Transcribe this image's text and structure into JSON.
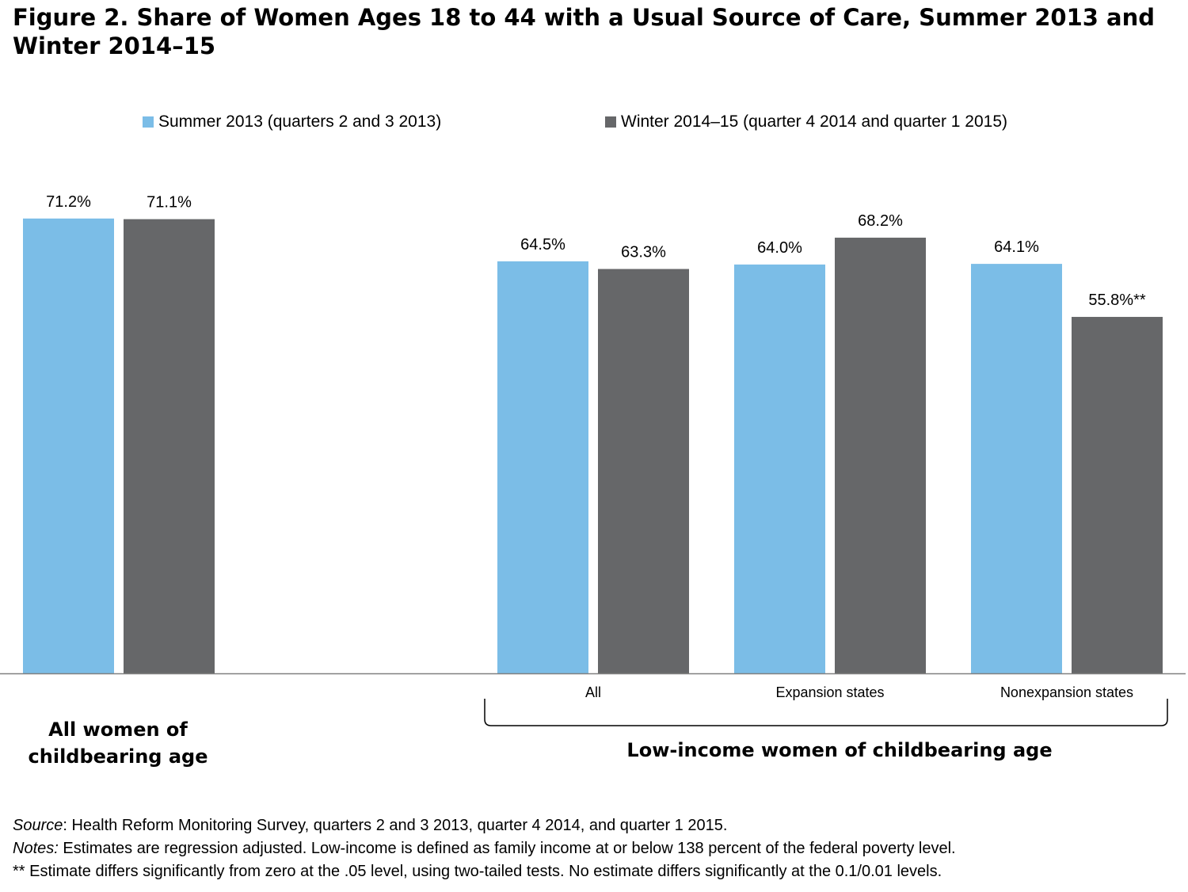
{
  "title": "Figure 2. Share of Women Ages 18 to 44 with a Usual Source of Care, Summer 2013 and Winter 2014–15",
  "colors": {
    "summer": "#7bbde7",
    "winter": "#666769",
    "axis": "#808080"
  },
  "chart_data": {
    "type": "bar",
    "title": "Figure 2. Share of Women Ages 18 to 44 with a Usual Source of Care, Summer 2013 and Winter 2014–15",
    "ylim": [
      0,
      80
    ],
    "grid": false,
    "legend_position": "top",
    "categories": [
      "",
      "All",
      "Expansion states",
      "Nonexpansion states"
    ],
    "series": [
      {
        "name": "Summer 2013 (quarters 2 and 3 2013)",
        "values": [
          71.2,
          64.5,
          64.0,
          64.1
        ],
        "labels": [
          "71.2%",
          "64.5%",
          "64.0%",
          "64.1%"
        ]
      },
      {
        "name": "Winter 2014–15 (quarter 4 2014 and quarter 1 2015)",
        "values": [
          71.1,
          63.3,
          68.2,
          55.8
        ],
        "labels": [
          "71.1%",
          "63.3%",
          "68.2%",
          "55.8%**"
        ]
      }
    ],
    "groups": [
      {
        "label": "All women of childbearing age",
        "categories": [
          0
        ]
      },
      {
        "label": "Low-income women of childbearing age",
        "categories": [
          1,
          2,
          3
        ]
      }
    ]
  },
  "footnotes": {
    "source_label": "Source",
    "source_text": ": Health Reform Monitoring Survey, quarters 2 and 3 2013, quarter 4 2014, and quarter 1 2015.",
    "notes_label": "Notes:",
    "notes_text": " Estimates are regression adjusted.  Low-income is defined as family income at or below 138 percent of the federal poverty level.",
    "significance": "** Estimate differs significantly from zero at the .05 level, using two-tailed tests.  No estimate differs significantly at the 0.1/0.01 levels."
  }
}
